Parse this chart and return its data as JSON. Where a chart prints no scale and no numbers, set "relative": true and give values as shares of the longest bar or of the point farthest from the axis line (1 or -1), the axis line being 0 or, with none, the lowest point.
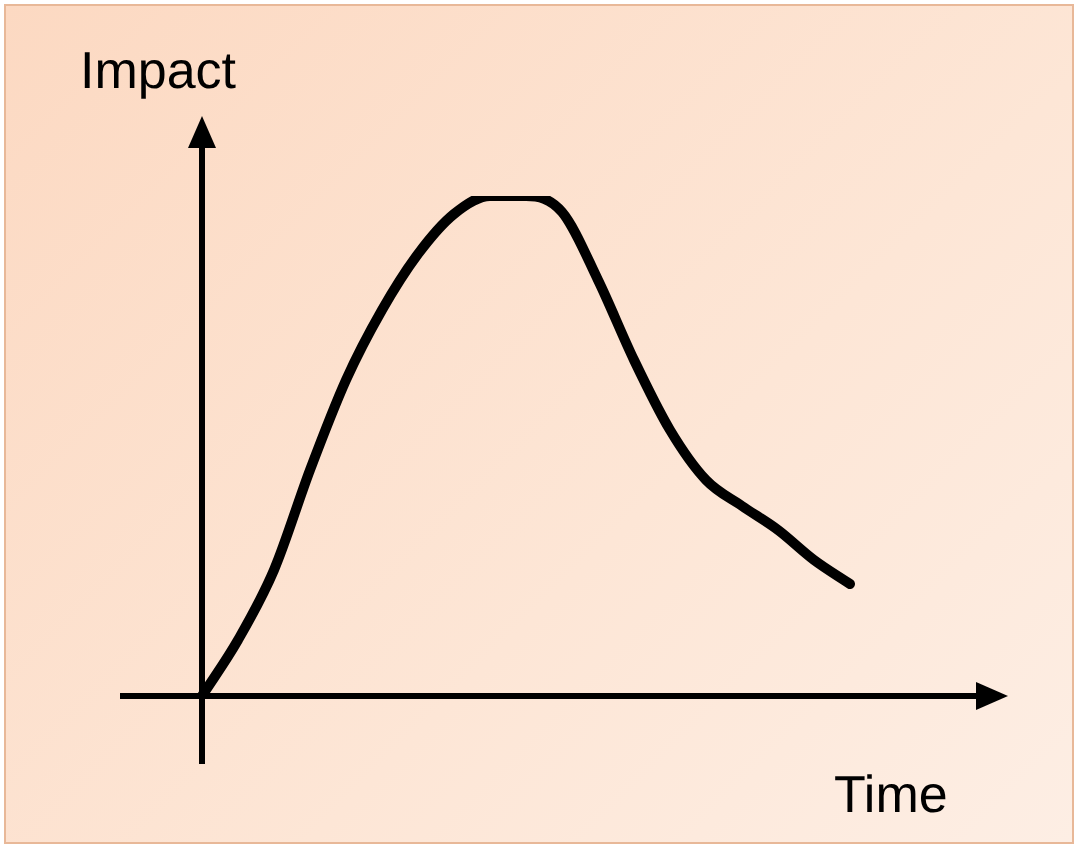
{
  "chart_data": {
    "type": "line",
    "xlabel": "Time",
    "ylabel": "Impact",
    "relative": true,
    "marker": "none",
    "line_style": "solid",
    "categories": [
      null,
      null,
      null,
      null,
      null,
      null,
      null,
      null,
      null,
      null,
      null,
      null,
      null,
      null,
      null,
      null,
      null,
      null,
      null
    ],
    "series": [
      {
        "color": "#000000",
        "values": [
          0,
          0.112,
          0.252,
          0.452,
          0.632,
          0.772,
          0.884,
          0.964,
          1.0,
          1.0,
          0.968,
          0.832,
          0.672,
          0.532,
          0.432,
          0.38,
          0.332,
          0.272,
          0.224
        ]
      }
    ]
  }
}
